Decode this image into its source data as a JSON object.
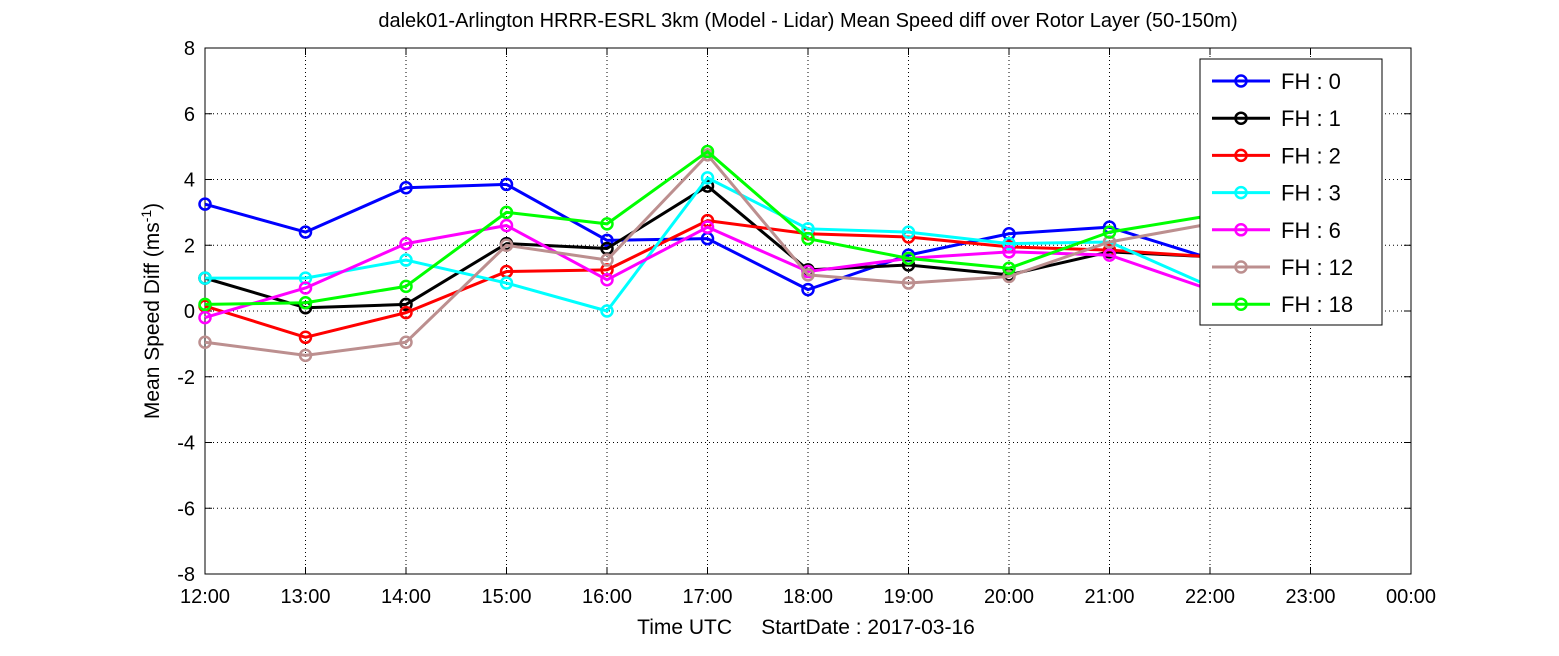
{
  "chart_data": {
    "type": "line",
    "title": "dalek01-Arlington HRRR-ESRL 3km (Model - Lidar) Mean Speed diff over Rotor Layer (50-150m)",
    "xlabel": "Time UTC     StartDate : 2017-03-16",
    "ylabel": "Mean Speed Diff (ms",
    "ylabel_sup": "-1",
    "ylabel_close": ")",
    "x_tick_labels": [
      "12:00",
      "13:00",
      "14:00",
      "15:00",
      "16:00",
      "17:00",
      "18:00",
      "19:00",
      "20:00",
      "21:00",
      "22:00",
      "23:00",
      "00:00"
    ],
    "y_ticks": [
      -8,
      -6,
      -4,
      -2,
      0,
      2,
      4,
      6,
      8
    ],
    "ylim": [
      -8,
      8
    ],
    "xlim": [
      0,
      12
    ],
    "grid": true,
    "legend_position": "top-right",
    "series": [
      {
        "name": "FH : 0",
        "color": "#0000ff",
        "x": [
          0,
          1,
          2,
          3,
          4,
          5,
          6,
          7,
          8,
          9,
          10
        ],
        "values": [
          3.25,
          2.4,
          3.75,
          3.85,
          2.15,
          2.2,
          0.65,
          1.7,
          2.35,
          2.55,
          1.6
        ]
      },
      {
        "name": "FH : 1",
        "color": "#000000",
        "x": [
          0,
          1,
          2,
          3,
          4,
          5,
          6,
          7,
          8,
          9,
          10
        ],
        "values": [
          1.0,
          0.1,
          0.2,
          2.05,
          1.9,
          3.8,
          1.25,
          1.4,
          1.1,
          1.8,
          1.65
        ]
      },
      {
        "name": "FH : 2",
        "color": "#ff0000",
        "x": [
          0,
          1,
          2,
          3,
          4,
          5,
          6,
          7,
          8,
          9,
          10
        ],
        "values": [
          0.15,
          -0.8,
          -0.05,
          1.2,
          1.25,
          2.75,
          2.35,
          2.25,
          1.95,
          1.85,
          1.65
        ]
      },
      {
        "name": "FH : 3",
        "color": "#00ffff",
        "x": [
          0,
          1,
          2,
          3,
          4,
          5,
          6,
          7,
          8,
          9,
          10
        ],
        "values": [
          1.0,
          1.0,
          1.55,
          0.85,
          0.0,
          4.05,
          2.5,
          2.4,
          2.05,
          2.1,
          0.75
        ]
      },
      {
        "name": "FH : 6",
        "color": "#ff00ff",
        "x": [
          0,
          1,
          2,
          3,
          4,
          5,
          6,
          7,
          8,
          9,
          10
        ],
        "values": [
          -0.2,
          0.7,
          2.05,
          2.6,
          0.95,
          2.55,
          1.2,
          1.6,
          1.8,
          1.7,
          0.65
        ]
      },
      {
        "name": "FH : 12",
        "color": "#bc8f8f",
        "x": [
          0,
          1,
          2,
          3,
          4,
          5,
          6,
          7,
          8,
          9,
          10
        ],
        "values": [
          -0.95,
          -1.35,
          -0.95,
          2.0,
          1.55,
          4.75,
          1.1,
          0.85,
          1.05,
          2.1,
          2.65
        ]
      },
      {
        "name": "FH : 18",
        "color": "#00ff00",
        "x": [
          0,
          1,
          2,
          3,
          4,
          5,
          6,
          7,
          8,
          9,
          10
        ],
        "values": [
          0.2,
          0.25,
          0.75,
          3.0,
          2.65,
          4.85,
          2.2,
          1.6,
          1.3,
          2.4,
          2.9
        ]
      }
    ]
  }
}
